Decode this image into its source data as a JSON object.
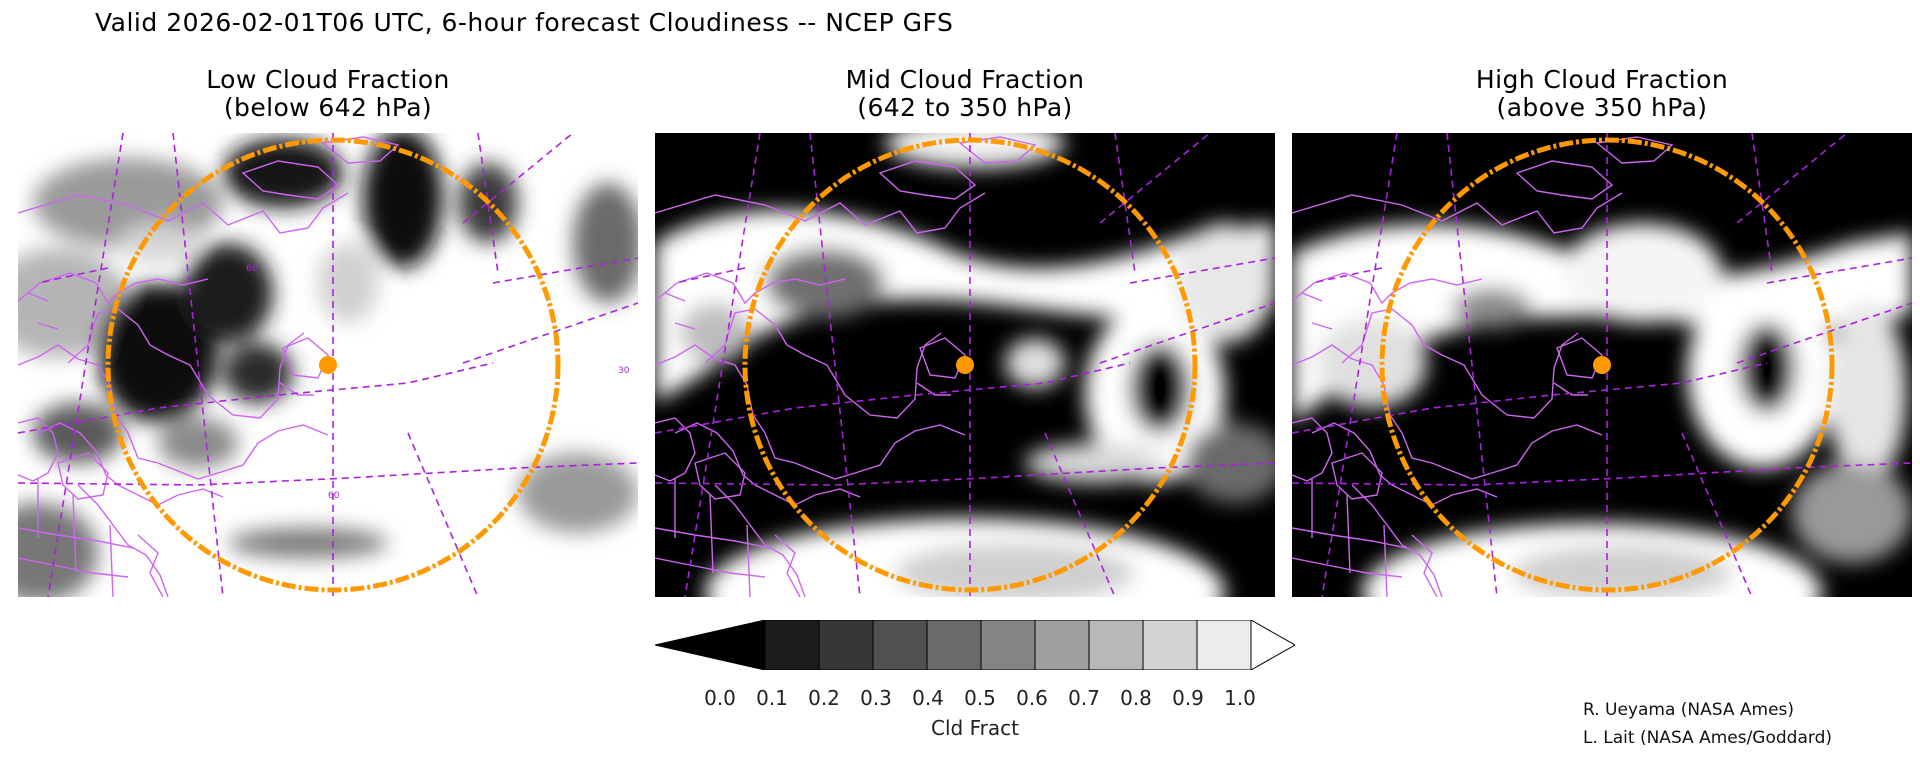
{
  "title": "Valid 2026-02-01T06 UTC, 6-hour forecast Cloudiness -- NCEP GFS",
  "panels": [
    {
      "line1": "Low Cloud Fraction",
      "line2": "(below 642 hPa)"
    },
    {
      "line1": "Mid Cloud Fraction",
      "line2": "(642 to 350 hPa)"
    },
    {
      "line1": "High Cloud Fraction",
      "line2": "(above 350 hPa)"
    }
  ],
  "map": {
    "grid_labels": [
      "60",
      "60",
      "30"
    ],
    "colors": {
      "coastline": "#cc66ee",
      "grid": "#aa22dd",
      "ring": "#ff9900",
      "marker": "#ff9900"
    }
  },
  "colorbar": {
    "title": "Cld Fract",
    "ticks": [
      "0.0",
      "0.1",
      "0.2",
      "0.3",
      "0.4",
      "0.5",
      "0.6",
      "0.7",
      "0.8",
      "0.9",
      "1.0"
    ],
    "fills": [
      "#000000",
      "#1c1c1c",
      "#363636",
      "#505050",
      "#6a6a6a",
      "#848484",
      "#9e9e9e",
      "#b8b8b8",
      "#d2d2d2",
      "#ececec",
      "#ffffff"
    ]
  },
  "credits": [
    "R. Ueyama (NASA Ames)",
    "L. Lait (NASA Ames/Goddard)"
  ]
}
